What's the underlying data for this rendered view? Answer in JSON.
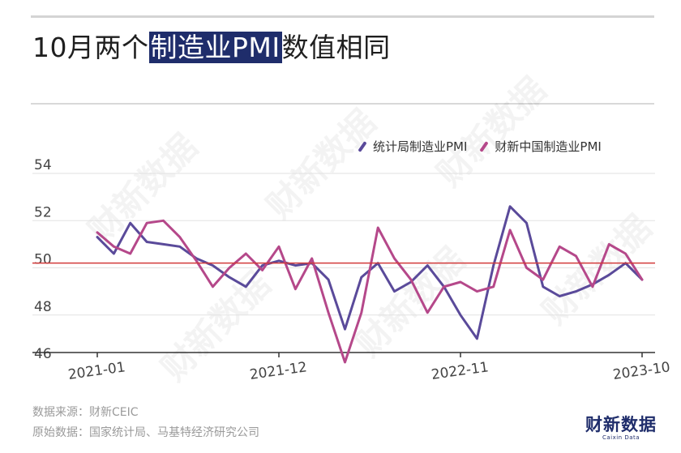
{
  "header": {
    "title_prefix": "10月两个",
    "title_highlight": "制造业PMI",
    "title_suffix": "数值相同"
  },
  "footer": {
    "source": "数据来源：财新CEIC",
    "raw_data": "原始数据：国家统计局、马基特经济研究公司"
  },
  "brand": {
    "logo_text": "财新数据",
    "logo_subtext": "Caixin Data",
    "watermark_text": "财新数据"
  },
  "colors": {
    "nbs": "#5a4a9a",
    "caixin": "#b5488a",
    "reference_line": "#d23a3a",
    "grid": "#e2e2e2",
    "axis": "#333333",
    "highlight_bg": "#1f2d6b"
  },
  "chart_data": {
    "type": "line",
    "title": "10月两个制造业PMI数值相同",
    "xlabel": "",
    "ylabel": "",
    "ylim": [
      46,
      54
    ],
    "yticks": [
      46,
      48,
      50,
      52,
      54
    ],
    "x_tick_labels": [
      "2021-01",
      "2021-12",
      "2022-11",
      "2023-10"
    ],
    "x_tick_indices": [
      0,
      11,
      22,
      33
    ],
    "reference_line": 50.2,
    "grid": true,
    "legend_position": "top-right",
    "x": [
      "2021-01",
      "2021-02",
      "2021-03",
      "2021-04",
      "2021-05",
      "2021-06",
      "2021-07",
      "2021-08",
      "2021-09",
      "2021-10",
      "2021-11",
      "2021-12",
      "2022-01",
      "2022-02",
      "2022-03",
      "2022-04",
      "2022-05",
      "2022-06",
      "2022-07",
      "2022-08",
      "2022-09",
      "2022-10",
      "2022-11",
      "2022-12",
      "2023-01",
      "2023-02",
      "2023-03",
      "2023-04",
      "2023-05",
      "2023-06",
      "2023-07",
      "2023-08",
      "2023-09",
      "2023-10"
    ],
    "series": [
      {
        "name": "统计局制造业PMI",
        "color": "#5a4a9a",
        "values": [
          51.3,
          50.6,
          51.9,
          51.1,
          51.0,
          50.9,
          50.4,
          50.1,
          49.6,
          49.2,
          50.1,
          50.3,
          50.1,
          50.2,
          49.5,
          47.4,
          49.6,
          50.2,
          49.0,
          49.4,
          50.1,
          49.2,
          48.0,
          47.0,
          50.1,
          52.6,
          51.9,
          49.2,
          48.8,
          49.0,
          49.3,
          49.7,
          50.2,
          49.5
        ]
      },
      {
        "name": "财新中国制造业PMI",
        "color": "#b5488a",
        "values": [
          51.5,
          50.9,
          50.6,
          51.9,
          52.0,
          51.3,
          50.3,
          49.2,
          50.0,
          50.6,
          49.9,
          50.9,
          49.1,
          50.4,
          48.1,
          46.0,
          48.1,
          51.7,
          50.4,
          49.5,
          48.1,
          49.2,
          49.4,
          49.0,
          49.2,
          51.6,
          50.0,
          49.5,
          50.9,
          50.5,
          49.2,
          51.0,
          50.6,
          49.5
        ]
      }
    ]
  }
}
